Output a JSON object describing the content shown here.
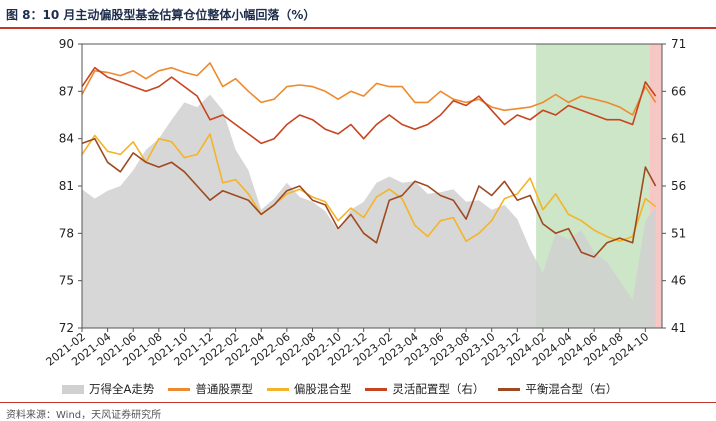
{
  "title": "图 8：10 月主动偏股型基金估算仓位整体小幅回落（%）",
  "source": "资料来源：Wind，天风证券研究所",
  "colors": {
    "area": "#d0d0d0",
    "common_stock": "#ed8a2f",
    "partial_stock": "#f4b42a",
    "flexible": "#c8441e",
    "balanced": "#9e4a20",
    "highlight_green": "#c8e3c1",
    "highlight_red": "#f6c1c0",
    "axis_title_rule": "#c0392b"
  },
  "chart_data": {
    "type": "line",
    "x_ticks": [
      "2021-02",
      "2021-04",
      "2021-06",
      "2021-08",
      "2021-10",
      "2021-12",
      "2022-02",
      "2022-04",
      "2022-06",
      "2022-08",
      "2022-10",
      "2022-12",
      "2023-02",
      "2023-04",
      "2023-06",
      "2023-08",
      "2023-10",
      "2023-12",
      "2024-02",
      "2024-04",
      "2024-06",
      "2024-08",
      "2024-10"
    ],
    "y_left": {
      "range": [
        72,
        90
      ],
      "ticks": [
        "72",
        "75",
        "78",
        "81",
        "84",
        "87",
        "90"
      ]
    },
    "y_right": {
      "range": [
        41,
        71
      ],
      "ticks": [
        "41",
        "46",
        "51",
        "56",
        "61",
        "66",
        "71"
      ]
    },
    "highlights": [
      {
        "from": "2024-01-15",
        "to": "2024-10-10",
        "color": "green"
      },
      {
        "from": "2024-10-10",
        "to": "2024-11-10",
        "color": "red"
      }
    ],
    "legend": [
      {
        "label": "万得全A走势",
        "kind": "area",
        "key": "area"
      },
      {
        "label": "普通股票型",
        "kind": "line",
        "key": "common_stock"
      },
      {
        "label": "偏股混合型",
        "kind": "line",
        "key": "partial_stock"
      },
      {
        "label": "灵活配置型（右）",
        "kind": "line",
        "key": "flexible"
      },
      {
        "label": "平衡混合型（右）",
        "kind": "line",
        "key": "balanced"
      }
    ],
    "series": [
      {
        "name": "万得全A走势",
        "key": "area",
        "axis": "left",
        "kind": "area",
        "points": [
          [
            "2021-02",
            80.8
          ],
          [
            "2021-03",
            80.2
          ],
          [
            "2021-04",
            80.7
          ],
          [
            "2021-05",
            81.0
          ],
          [
            "2021-06",
            82.0
          ],
          [
            "2021-07",
            83.3
          ],
          [
            "2021-08",
            84.0
          ],
          [
            "2021-09",
            85.2
          ],
          [
            "2021-10",
            86.3
          ],
          [
            "2021-11",
            86.0
          ],
          [
            "2021-12",
            86.8
          ],
          [
            "2022-01",
            85.8
          ],
          [
            "2022-02",
            83.3
          ],
          [
            "2022-03",
            82.0
          ],
          [
            "2022-04",
            79.5
          ],
          [
            "2022-05",
            80.2
          ],
          [
            "2022-06",
            81.2
          ],
          [
            "2022-07",
            80.3
          ],
          [
            "2022-08",
            80.0
          ],
          [
            "2022-09",
            79.4
          ],
          [
            "2022-10",
            78.2
          ],
          [
            "2022-11",
            79.5
          ],
          [
            "2022-12",
            80.0
          ],
          [
            "2023-01",
            81.2
          ],
          [
            "2023-02",
            81.6
          ],
          [
            "2023-03",
            81.2
          ],
          [
            "2023-04",
            81.3
          ],
          [
            "2023-05",
            80.5
          ],
          [
            "2023-06",
            80.6
          ],
          [
            "2023-07",
            80.8
          ],
          [
            "2023-08",
            80.0
          ],
          [
            "2023-09",
            80.1
          ],
          [
            "2023-10",
            79.5
          ],
          [
            "2023-11",
            79.8
          ],
          [
            "2023-12",
            78.9
          ],
          [
            "2024-01",
            77.0
          ],
          [
            "2024-02",
            75.5
          ],
          [
            "2024-03",
            78.0
          ],
          [
            "2024-04",
            77.6
          ],
          [
            "2024-05",
            78.2
          ],
          [
            "2024-06",
            76.8
          ],
          [
            "2024-07",
            76.2
          ],
          [
            "2024-08",
            75.0
          ],
          [
            "2024-09",
            73.8
          ],
          [
            "2024-10",
            78.8
          ],
          [
            "2024-10-25",
            79.6
          ]
        ]
      },
      {
        "name": "普通股票型",
        "key": "common_stock",
        "axis": "left",
        "kind": "line",
        "points": [
          [
            "2021-02",
            86.8
          ],
          [
            "2021-03",
            88.3
          ],
          [
            "2021-04",
            88.2
          ],
          [
            "2021-05",
            88.0
          ],
          [
            "2021-06",
            88.3
          ],
          [
            "2021-07",
            87.8
          ],
          [
            "2021-08",
            88.3
          ],
          [
            "2021-09",
            88.5
          ],
          [
            "2021-10",
            88.2
          ],
          [
            "2021-11",
            88.0
          ],
          [
            "2021-12",
            88.8
          ],
          [
            "2022-01",
            87.3
          ],
          [
            "2022-02",
            87.8
          ],
          [
            "2022-03",
            87.0
          ],
          [
            "2022-04",
            86.3
          ],
          [
            "2022-05",
            86.5
          ],
          [
            "2022-06",
            87.3
          ],
          [
            "2022-07",
            87.4
          ],
          [
            "2022-08",
            87.3
          ],
          [
            "2022-09",
            87.0
          ],
          [
            "2022-10",
            86.5
          ],
          [
            "2022-11",
            87.0
          ],
          [
            "2022-12",
            86.7
          ],
          [
            "2023-01",
            87.5
          ],
          [
            "2023-02",
            87.3
          ],
          [
            "2023-03",
            87.3
          ],
          [
            "2023-04",
            86.3
          ],
          [
            "2023-05",
            86.3
          ],
          [
            "2023-06",
            87.0
          ],
          [
            "2023-07",
            86.5
          ],
          [
            "2023-08",
            86.3
          ],
          [
            "2023-09",
            86.5
          ],
          [
            "2023-10",
            86.0
          ],
          [
            "2023-11",
            85.8
          ],
          [
            "2023-12",
            85.9
          ],
          [
            "2024-01",
            86.0
          ],
          [
            "2024-02",
            86.3
          ],
          [
            "2024-03",
            86.8
          ],
          [
            "2024-04",
            86.3
          ],
          [
            "2024-05",
            86.7
          ],
          [
            "2024-06",
            86.5
          ],
          [
            "2024-07",
            86.3
          ],
          [
            "2024-08",
            86.0
          ],
          [
            "2024-09",
            85.5
          ],
          [
            "2024-10",
            87.3
          ],
          [
            "2024-10-25",
            86.3
          ]
        ]
      },
      {
        "name": "偏股混合型",
        "key": "partial_stock",
        "axis": "left",
        "kind": "line",
        "points": [
          [
            "2021-02",
            83.0
          ],
          [
            "2021-03",
            84.2
          ],
          [
            "2021-04",
            83.2
          ],
          [
            "2021-05",
            83.0
          ],
          [
            "2021-06",
            83.8
          ],
          [
            "2021-07",
            82.5
          ],
          [
            "2021-08",
            84.0
          ],
          [
            "2021-09",
            83.8
          ],
          [
            "2021-10",
            82.8
          ],
          [
            "2021-11",
            83.0
          ],
          [
            "2021-12",
            84.3
          ],
          [
            "2022-01",
            81.2
          ],
          [
            "2022-02",
            81.4
          ],
          [
            "2022-03",
            80.5
          ],
          [
            "2022-04",
            79.2
          ],
          [
            "2022-05",
            79.8
          ],
          [
            "2022-06",
            80.5
          ],
          [
            "2022-07",
            80.8
          ],
          [
            "2022-08",
            80.3
          ],
          [
            "2022-09",
            80.0
          ],
          [
            "2022-10",
            78.8
          ],
          [
            "2022-11",
            79.6
          ],
          [
            "2022-12",
            79.0
          ],
          [
            "2023-01",
            80.3
          ],
          [
            "2023-02",
            80.8
          ],
          [
            "2023-03",
            80.2
          ],
          [
            "2023-04",
            78.5
          ],
          [
            "2023-05",
            77.8
          ],
          [
            "2023-06",
            78.8
          ],
          [
            "2023-07",
            79.0
          ],
          [
            "2023-08",
            77.5
          ],
          [
            "2023-09",
            78.0
          ],
          [
            "2023-10",
            78.8
          ],
          [
            "2023-11",
            80.2
          ],
          [
            "2023-12",
            80.5
          ],
          [
            "2024-01",
            81.5
          ],
          [
            "2024-02",
            79.5
          ],
          [
            "2024-03",
            80.5
          ],
          [
            "2024-04",
            79.2
          ],
          [
            "2024-05",
            78.8
          ],
          [
            "2024-06",
            78.2
          ],
          [
            "2024-07",
            77.8
          ],
          [
            "2024-08",
            77.5
          ],
          [
            "2024-09",
            77.8
          ],
          [
            "2024-10",
            80.2
          ],
          [
            "2024-10-25",
            79.7
          ]
        ]
      },
      {
        "name": "灵活配置型（右）",
        "key": "flexible",
        "axis": "right",
        "kind": "line",
        "points": [
          [
            "2021-02",
            66.5
          ],
          [
            "2021-03",
            68.5
          ],
          [
            "2021-04",
            67.5
          ],
          [
            "2021-05",
            67.0
          ],
          [
            "2021-06",
            66.5
          ],
          [
            "2021-07",
            66.0
          ],
          [
            "2021-08",
            66.5
          ],
          [
            "2021-09",
            67.5
          ],
          [
            "2021-10",
            66.5
          ],
          [
            "2021-11",
            65.5
          ],
          [
            "2021-12",
            63.0
          ],
          [
            "2022-01",
            63.5
          ],
          [
            "2022-02",
            62.5
          ],
          [
            "2022-03",
            61.5
          ],
          [
            "2022-04",
            60.5
          ],
          [
            "2022-05",
            61.0
          ],
          [
            "2022-06",
            62.5
          ],
          [
            "2022-07",
            63.5
          ],
          [
            "2022-08",
            63.0
          ],
          [
            "2022-09",
            62.0
          ],
          [
            "2022-10",
            61.5
          ],
          [
            "2022-11",
            62.5
          ],
          [
            "2022-12",
            61.0
          ],
          [
            "2023-01",
            62.5
          ],
          [
            "2023-02",
            63.5
          ],
          [
            "2023-03",
            62.5
          ],
          [
            "2023-04",
            62.0
          ],
          [
            "2023-05",
            62.5
          ],
          [
            "2023-06",
            63.5
          ],
          [
            "2023-07",
            65.0
          ],
          [
            "2023-08",
            64.5
          ],
          [
            "2023-09",
            65.5
          ],
          [
            "2023-10",
            64.0
          ],
          [
            "2023-11",
            62.5
          ],
          [
            "2023-12",
            63.5
          ],
          [
            "2024-01",
            63.0
          ],
          [
            "2024-02",
            64.0
          ],
          [
            "2024-03",
            63.5
          ],
          [
            "2024-04",
            64.5
          ],
          [
            "2024-05",
            64.0
          ],
          [
            "2024-06",
            63.5
          ],
          [
            "2024-07",
            63.0
          ],
          [
            "2024-08",
            63.0
          ],
          [
            "2024-09",
            62.5
          ],
          [
            "2024-10",
            67.0
          ],
          [
            "2024-10-25",
            65.5
          ]
        ]
      },
      {
        "name": "平衡混合型（右）",
        "key": "balanced",
        "axis": "right",
        "kind": "line",
        "points": [
          [
            "2021-02",
            60.5
          ],
          [
            "2021-03",
            61.0
          ],
          [
            "2021-04",
            58.5
          ],
          [
            "2021-05",
            57.5
          ],
          [
            "2021-06",
            59.5
          ],
          [
            "2021-07",
            58.5
          ],
          [
            "2021-08",
            58.0
          ],
          [
            "2021-09",
            58.5
          ],
          [
            "2021-10",
            57.5
          ],
          [
            "2021-11",
            56.0
          ],
          [
            "2021-12",
            54.5
          ],
          [
            "2022-01",
            55.5
          ],
          [
            "2022-02",
            55.0
          ],
          [
            "2022-03",
            54.5
          ],
          [
            "2022-04",
            53.0
          ],
          [
            "2022-05",
            54.0
          ],
          [
            "2022-06",
            55.5
          ],
          [
            "2022-07",
            56.0
          ],
          [
            "2022-08",
            54.5
          ],
          [
            "2022-09",
            54.0
          ],
          [
            "2022-10",
            51.5
          ],
          [
            "2022-11",
            53.0
          ],
          [
            "2022-12",
            51.0
          ],
          [
            "2023-01",
            50.0
          ],
          [
            "2023-02",
            54.5
          ],
          [
            "2023-03",
            55.0
          ],
          [
            "2023-04",
            56.5
          ],
          [
            "2023-05",
            56.0
          ],
          [
            "2023-06",
            55.0
          ],
          [
            "2023-07",
            54.5
          ],
          [
            "2023-08",
            52.5
          ],
          [
            "2023-09",
            56.0
          ],
          [
            "2023-10",
            55.0
          ],
          [
            "2023-11",
            56.5
          ],
          [
            "2023-12",
            54.5
          ],
          [
            "2024-01",
            55.0
          ],
          [
            "2024-02",
            52.0
          ],
          [
            "2024-03",
            51.0
          ],
          [
            "2024-04",
            51.5
          ],
          [
            "2024-05",
            49.0
          ],
          [
            "2024-06",
            48.5
          ],
          [
            "2024-07",
            50.0
          ],
          [
            "2024-08",
            50.5
          ],
          [
            "2024-09",
            50.0
          ],
          [
            "2024-10",
            58.0
          ],
          [
            "2024-10-25",
            56.0
          ]
        ]
      }
    ]
  }
}
